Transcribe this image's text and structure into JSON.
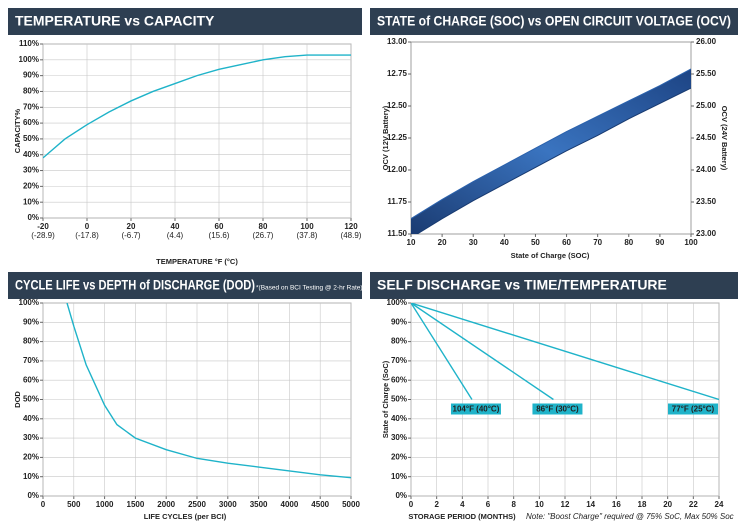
{
  "chart_data": [
    {
      "type": "line",
      "title": "TEMPERATURE vs CAPACITY",
      "xlabel": "TEMPERATURE °F (°C)",
      "ylabel": "CAPACITY%",
      "grid": true,
      "x": [
        -20,
        -10,
        0,
        10,
        20,
        30,
        40,
        50,
        60,
        70,
        80,
        90,
        100,
        110,
        120
      ],
      "series": [
        {
          "color": "#1fb3c9",
          "values": [
            38,
            50,
            59,
            67,
            74,
            80,
            85,
            90,
            94,
            97,
            100,
            102,
            103,
            103,
            103
          ]
        }
      ],
      "xlim": [
        -20,
        120
      ],
      "xticks": [
        -20,
        0,
        20,
        40,
        60,
        80,
        100,
        120
      ],
      "xtick_sublabels": [
        "(-28.9)",
        "(-17.8)",
        "(-6.7)",
        "(4.4)",
        "(15.6)",
        "(26.7)",
        "(37.8)",
        "(48.9)"
      ],
      "ylim": [
        0,
        110
      ],
      "yticks": [
        {
          "value": 0,
          "label": "0%"
        },
        {
          "value": 10,
          "label": "10%"
        },
        {
          "value": 20,
          "label": "20%"
        },
        {
          "value": 30,
          "label": "30%"
        },
        {
          "value": 40,
          "label": "40%"
        },
        {
          "value": 50,
          "label": "50%"
        },
        {
          "value": 60,
          "label": "60%"
        },
        {
          "value": 70,
          "label": "70%"
        },
        {
          "value": 80,
          "label": "80%"
        },
        {
          "value": 90,
          "label": "90%"
        },
        {
          "value": 100,
          "label": "100%"
        },
        {
          "value": 110,
          "label": "110%"
        }
      ]
    },
    {
      "type": "band",
      "title": "STATE of CHARGE (SOC) vs OPEN CIRCUIT VOLTAGE (OCV)",
      "xlabel": "State of Charge (SOC)",
      "ylabel": "OCV (12V Battery)",
      "y2label": "OCV (24V Battery)",
      "grid": false,
      "x": [
        10,
        20,
        30,
        40,
        50,
        60,
        70,
        80,
        90,
        100
      ],
      "series": [
        {
          "color": "#2b62ad",
          "values": [
            11.62,
            11.77,
            11.91,
            12.04,
            12.17,
            12.3,
            12.42,
            12.54,
            12.66,
            12.79
          ]
        },
        {
          "color": "#183a70",
          "values": [
            11.47,
            11.62,
            11.76,
            11.89,
            12.02,
            12.15,
            12.27,
            12.4,
            12.52,
            12.64
          ]
        }
      ],
      "xlim": [
        10,
        100
      ],
      "xticks": [
        10,
        20,
        30,
        40,
        50,
        60,
        70,
        80,
        90,
        100
      ],
      "ylim": [
        11.5,
        13.0
      ],
      "yticks": [
        {
          "value": 11.5,
          "label": "11.50"
        },
        {
          "value": 11.75,
          "label": "11.75"
        },
        {
          "value": 12.0,
          "label": "12.00"
        },
        {
          "value": 12.25,
          "label": "12.25"
        },
        {
          "value": 12.5,
          "label": "12.50"
        },
        {
          "value": 12.75,
          "label": "12.75"
        },
        {
          "value": 13.0,
          "label": "13.00"
        }
      ],
      "y2lim": [
        23.0,
        26.0
      ],
      "y2ticks": [
        {
          "value": 23.0,
          "label": "23.00"
        },
        {
          "value": 23.5,
          "label": "23.50"
        },
        {
          "value": 24.0,
          "label": "24.00"
        },
        {
          "value": 24.5,
          "label": "24.50"
        },
        {
          "value": 25.0,
          "label": "25.00"
        },
        {
          "value": 25.5,
          "label": "25.50"
        },
        {
          "value": 26.0,
          "label": "26.00"
        }
      ]
    },
    {
      "type": "line",
      "title": "CYCLE LIFE vs DEPTH of DISCHARGE (DOD)",
      "note": "*(Based on BCI Testing @ 2-hr Rate)",
      "xlabel": "LIFE CYCLES (per BCI)",
      "ylabel": "DOD",
      "grid": true,
      "x": [
        390,
        500,
        700,
        1000,
        1200,
        1500,
        2000,
        2500,
        3000,
        3500,
        4000,
        4500,
        5000
      ],
      "series": [
        {
          "color": "#1fb3c9",
          "values": [
            100,
            88,
            68,
            47,
            37,
            30,
            24,
            19.5,
            17,
            15,
            13,
            11,
            9.5
          ]
        }
      ],
      "xlim": [
        0,
        5000
      ],
      "xticks": [
        0,
        500,
        1000,
        1500,
        2000,
        2500,
        3000,
        3500,
        4000,
        4500,
        5000
      ],
      "ylim": [
        0,
        100
      ],
      "yticks": [
        {
          "value": 0,
          "label": "0%"
        },
        {
          "value": 10,
          "label": "10%"
        },
        {
          "value": 20,
          "label": "20%"
        },
        {
          "value": 30,
          "label": "30%"
        },
        {
          "value": 40,
          "label": "40%"
        },
        {
          "value": 50,
          "label": "50%"
        },
        {
          "value": 60,
          "label": "60%"
        },
        {
          "value": 70,
          "label": "70%"
        },
        {
          "value": 80,
          "label": "80%"
        },
        {
          "value": 90,
          "label": "90%"
        },
        {
          "value": 100,
          "label": "100%"
        }
      ]
    },
    {
      "type": "line",
      "title": "SELF DISCHARGE vs TIME/TEMPERATURE",
      "xlabel": "STORAGE PERIOD (MONTHS)",
      "note": "Note: \"Boost Charge\" required @ 75% SoC, Max 50% Soc",
      "ylabel": "State of Charge (SoC)",
      "grid": true,
      "series": [
        {
          "name": "104°F (40°C)",
          "color": "#1fb3c9",
          "x": [
            0,
            4.75
          ],
          "values": [
            100,
            50
          ]
        },
        {
          "name": "86°F (30°C)",
          "color": "#1fb3c9",
          "x": [
            0,
            11.1
          ],
          "values": [
            100,
            50
          ]
        },
        {
          "name": "77°F (25°C)",
          "color": "#1fb3c9",
          "x": [
            0,
            24
          ],
          "values": [
            100,
            50
          ]
        }
      ],
      "xlim": [
        0,
        24
      ],
      "xticks": [
        0,
        2,
        4,
        6,
        8,
        10,
        12,
        14,
        16,
        18,
        20,
        22,
        24
      ],
      "ylim": [
        0,
        100
      ],
      "yticks": [
        {
          "value": 0,
          "label": "0%"
        },
        {
          "value": 10,
          "label": "10%"
        },
        {
          "value": 20,
          "label": "20%"
        },
        {
          "value": 30,
          "label": "30%"
        },
        {
          "value": 40,
          "label": "40%"
        },
        {
          "value": 50,
          "label": "50%"
        },
        {
          "value": 60,
          "label": "60%"
        },
        {
          "value": 70,
          "label": "70%"
        },
        {
          "value": 80,
          "label": "80%"
        },
        {
          "value": 90,
          "label": "90%"
        },
        {
          "value": 100,
          "label": "100%"
        }
      ]
    }
  ]
}
